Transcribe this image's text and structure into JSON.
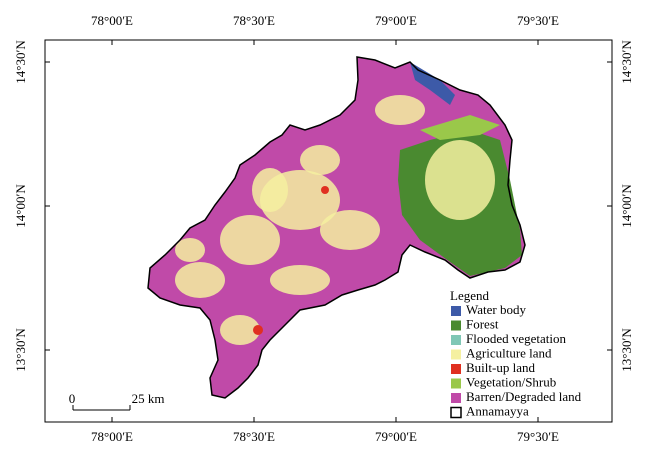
{
  "axes": {
    "top": [
      "78°00′E",
      "78°30′E",
      "79°00′E",
      "79°30′E"
    ],
    "bottom": [
      "78°00′E",
      "78°30′E",
      "79°00′E",
      "79°30′E"
    ],
    "left": [
      "14°30′N",
      "14°00′N",
      "13°30′N"
    ],
    "right": [
      "14°30′N",
      "14°00′N",
      "13°30′N"
    ]
  },
  "legend": {
    "title": "Legend",
    "items": [
      {
        "label": "Water body",
        "color": "#3d5aa8"
      },
      {
        "label": "Forest",
        "color": "#4a8a30"
      },
      {
        "label": "Flooded vegetation",
        "color": "#7fc7b5"
      },
      {
        "label": "Agriculture land",
        "color": "#f5f0a0"
      },
      {
        "label": "Built-up land",
        "color": "#e03020"
      },
      {
        "label": "Vegetation/Shrub",
        "color": "#9ac84a"
      },
      {
        "label": "Barren/Degraded land",
        "color": "#c04aa8"
      },
      {
        "label": "Annamayya",
        "color": "#000000"
      }
    ]
  },
  "scalebar": {
    "zero": "0",
    "label": "25 km"
  }
}
